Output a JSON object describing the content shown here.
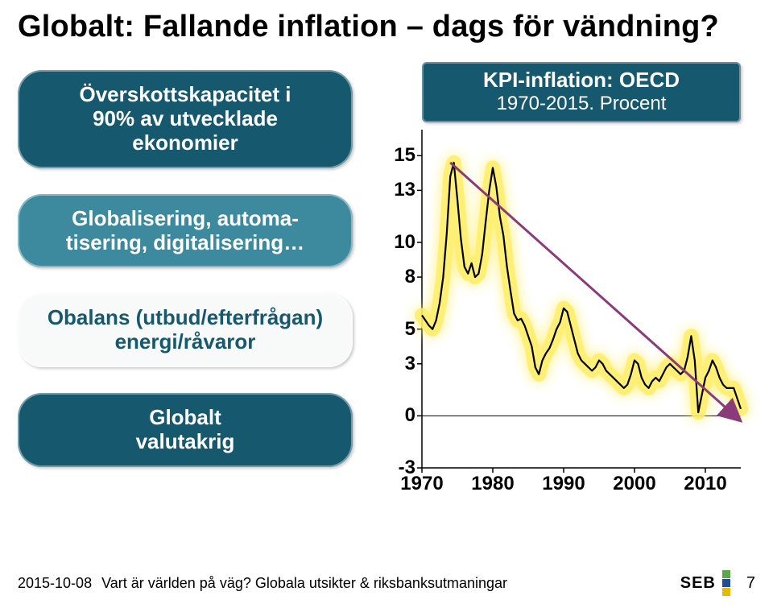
{
  "title": "Globalt: Fallande inflation – dags för vändning?",
  "pills": [
    {
      "text": "Överskottskapacitet i\n90% av utvecklade\nekonomier",
      "bg": "#16596e",
      "fg": "#ffffff"
    },
    {
      "text": "Globalisering, automa-\ntisering, digitalisering…",
      "bg": "#3d8a9f",
      "fg": "#ffffff"
    },
    {
      "text": "Obalans (utbud/efterfrågan)\nenergi/råvaror",
      "bg": "#f8faf9",
      "fg": "#16596e"
    },
    {
      "text": "Globalt\nvalutakrig",
      "bg": "#16596e",
      "fg": "#ffffff"
    }
  ],
  "chart": {
    "header_title": "KPI-inflation: OECD",
    "header_sub": "1970-2015. Procent",
    "header_bg": "#16596e",
    "header_fg": "#ffffff",
    "type": "line",
    "ylim": [
      -3,
      16.5
    ],
    "yticks": [
      -3,
      0,
      3,
      5,
      8,
      10,
      13,
      15
    ],
    "xlim": [
      1970,
      2015
    ],
    "xticks": [
      1970,
      1980,
      1990,
      2000,
      2010
    ],
    "background_color": "#ffffff",
    "axis_color": "#000000",
    "zero_line_color": "#000000",
    "line": {
      "color": "#000000",
      "width": 2.2,
      "glow_color": "#ffee66",
      "glow_width": 18,
      "points": [
        [
          1970,
          5.8
        ],
        [
          1970.5,
          5.5
        ],
        [
          1971,
          5.2
        ],
        [
          1971.5,
          5.0
        ],
        [
          1972,
          5.5
        ],
        [
          1972.5,
          6.5
        ],
        [
          1973,
          8.0
        ],
        [
          1973.5,
          10.5
        ],
        [
          1974,
          13.8
        ],
        [
          1974.5,
          14.6
        ],
        [
          1975,
          12.5
        ],
        [
          1975.5,
          10.2
        ],
        [
          1976,
          8.6
        ],
        [
          1976.5,
          8.2
        ],
        [
          1977,
          8.8
        ],
        [
          1977.5,
          8.0
        ],
        [
          1978,
          8.2
        ],
        [
          1978.5,
          9.3
        ],
        [
          1979,
          11.2
        ],
        [
          1979.5,
          13.0
        ],
        [
          1980,
          14.3
        ],
        [
          1980.5,
          13.2
        ],
        [
          1981,
          11.5
        ],
        [
          1981.5,
          10.4
        ],
        [
          1982,
          8.6
        ],
        [
          1982.5,
          7.2
        ],
        [
          1983,
          5.9
        ],
        [
          1983.5,
          5.5
        ],
        [
          1984,
          5.6
        ],
        [
          1984.5,
          5.2
        ],
        [
          1985,
          4.6
        ],
        [
          1985.5,
          4.0
        ],
        [
          1986,
          2.8
        ],
        [
          1986.5,
          2.4
        ],
        [
          1987,
          3.2
        ],
        [
          1987.5,
          3.6
        ],
        [
          1988,
          3.9
        ],
        [
          1988.5,
          4.4
        ],
        [
          1989,
          5.0
        ],
        [
          1989.5,
          5.4
        ],
        [
          1990,
          6.2
        ],
        [
          1990.5,
          6.0
        ],
        [
          1991,
          5.2
        ],
        [
          1991.5,
          4.4
        ],
        [
          1992,
          3.6
        ],
        [
          1992.5,
          3.2
        ],
        [
          1993,
          3.0
        ],
        [
          1993.5,
          2.8
        ],
        [
          1994,
          2.6
        ],
        [
          1994.5,
          2.8
        ],
        [
          1995,
          3.2
        ],
        [
          1995.5,
          3.0
        ],
        [
          1996,
          2.6
        ],
        [
          1996.5,
          2.4
        ],
        [
          1997,
          2.2
        ],
        [
          1997.5,
          2.0
        ],
        [
          1998,
          1.8
        ],
        [
          1998.5,
          1.6
        ],
        [
          1999,
          1.8
        ],
        [
          1999.5,
          2.4
        ],
        [
          2000,
          3.2
        ],
        [
          2000.5,
          3.0
        ],
        [
          2001,
          2.2
        ],
        [
          2001.5,
          1.8
        ],
        [
          2002,
          1.6
        ],
        [
          2002.5,
          2.0
        ],
        [
          2003,
          2.2
        ],
        [
          2003.5,
          2.0
        ],
        [
          2004,
          2.4
        ],
        [
          2004.5,
          2.8
        ],
        [
          2005,
          3.0
        ],
        [
          2005.5,
          2.8
        ],
        [
          2006,
          2.6
        ],
        [
          2006.5,
          2.4
        ],
        [
          2007,
          2.6
        ],
        [
          2007.5,
          3.4
        ],
        [
          2008,
          4.6
        ],
        [
          2008.5,
          3.2
        ],
        [
          2009,
          0.2
        ],
        [
          2009.5,
          1.2
        ],
        [
          2010,
          2.2
        ],
        [
          2010.5,
          2.6
        ],
        [
          2011,
          3.2
        ],
        [
          2011.5,
          2.8
        ],
        [
          2012,
          2.2
        ],
        [
          2012.5,
          1.8
        ],
        [
          2013,
          1.6
        ],
        [
          2013.5,
          1.6
        ],
        [
          2014,
          1.6
        ],
        [
          2014.5,
          1.0
        ],
        [
          2015,
          0.4
        ]
      ]
    },
    "trend": {
      "color": "#8b3a7a",
      "width": 3,
      "arrow": true,
      "start": [
        1974,
        14.6
      ],
      "end": [
        2015,
        -0.3
      ]
    }
  },
  "footer": {
    "date": "2015-10-08",
    "text": "Vart är världen på väg? Globala utsikter & riksbanksutmaningar",
    "page": "7",
    "logo": {
      "text": "SEB",
      "swatches": [
        "#5aa84a",
        "#1e4e9c",
        "#e7b900"
      ]
    }
  }
}
